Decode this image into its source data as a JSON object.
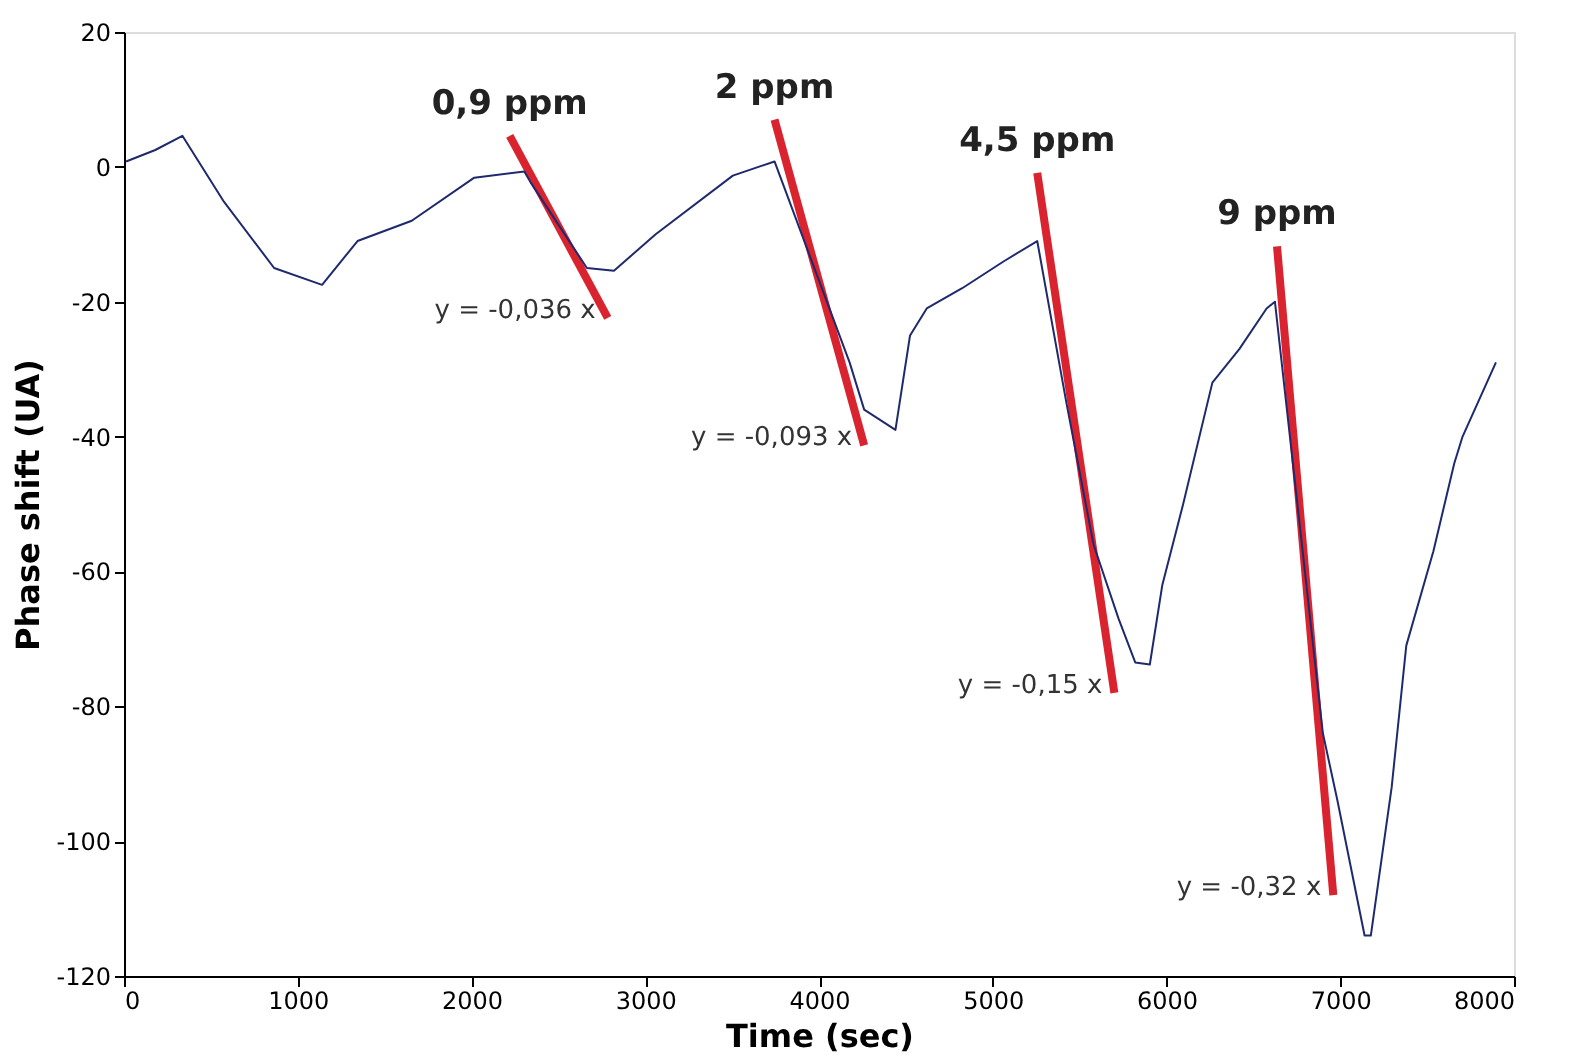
{
  "chart_data": {
    "type": "line",
    "xlabel": "Time (sec)",
    "ylabel": "Phase shift (UA)",
    "xlim": [
      0,
      8000
    ],
    "xticks": [
      0,
      1000,
      2000,
      3000,
      4000,
      5000,
      6000,
      7000,
      8000
    ],
    "ylim": [
      -120,
      20
    ],
    "yticks": [
      -120,
      -100,
      -80,
      -60,
      -40,
      -20,
      0,
      20
    ],
    "grid": false,
    "series": [
      {
        "color": "#1f2a6e",
        "x": [
          12,
          180,
          336,
          576,
          864,
          1140,
          1344,
          1656,
          2016,
          2304,
          2340,
          2664,
          2820,
          3060,
          3504,
          3744,
          4176,
          4260,
          4440,
          4524,
          4620,
          4824,
          5064,
          5256,
          5424,
          5580,
          5724,
          5820,
          5904,
          5976,
          6096,
          6264,
          6420,
          6576,
          6624,
          6900,
          6984,
          7140,
          7176,
          7296,
          7380,
          7536,
          7656,
          7704,
          7896
        ],
        "values": [
          0.8,
          2.5,
          4.6,
          -5.2,
          -15,
          -17.5,
          -11,
          -8,
          -1.6,
          -0.7,
          -2.3,
          -15,
          -15.4,
          -10,
          -1.3,
          0.8,
          -29,
          -36,
          -39,
          -25,
          -21,
          -18,
          -14,
          -11,
          -35,
          -56,
          -67,
          -73.5,
          -73.8,
          -62,
          -50,
          -32,
          -27,
          -21,
          -20,
          -84,
          -94,
          -114,
          -114,
          -92,
          -71,
          -57,
          -44,
          -40,
          -29
        ]
      },
      {
        "name": "0,9 ppm",
        "color": "#d9232e",
        "x": [
          2220,
          2784
        ],
        "values": [
          4.6,
          -22.4
        ]
      },
      {
        "name": "2 ppm",
        "color": "#d9232e",
        "x": [
          3744,
          4260
        ],
        "values": [
          7,
          -41.3
        ]
      },
      {
        "name": "4,5 ppm",
        "color": "#d9232e",
        "x": [
          5256,
          5700
        ],
        "values": [
          -0.9,
          -78
        ]
      },
      {
        "name": "9 ppm",
        "color": "#d9232e",
        "x": [
          6636,
          6960
        ],
        "values": [
          -11.8,
          -108
        ]
      }
    ],
    "annotations": [
      "y = -0,036 x",
      "y = -0,093 x",
      "y = -0,15 x",
      "y = -0,32 x"
    ]
  }
}
